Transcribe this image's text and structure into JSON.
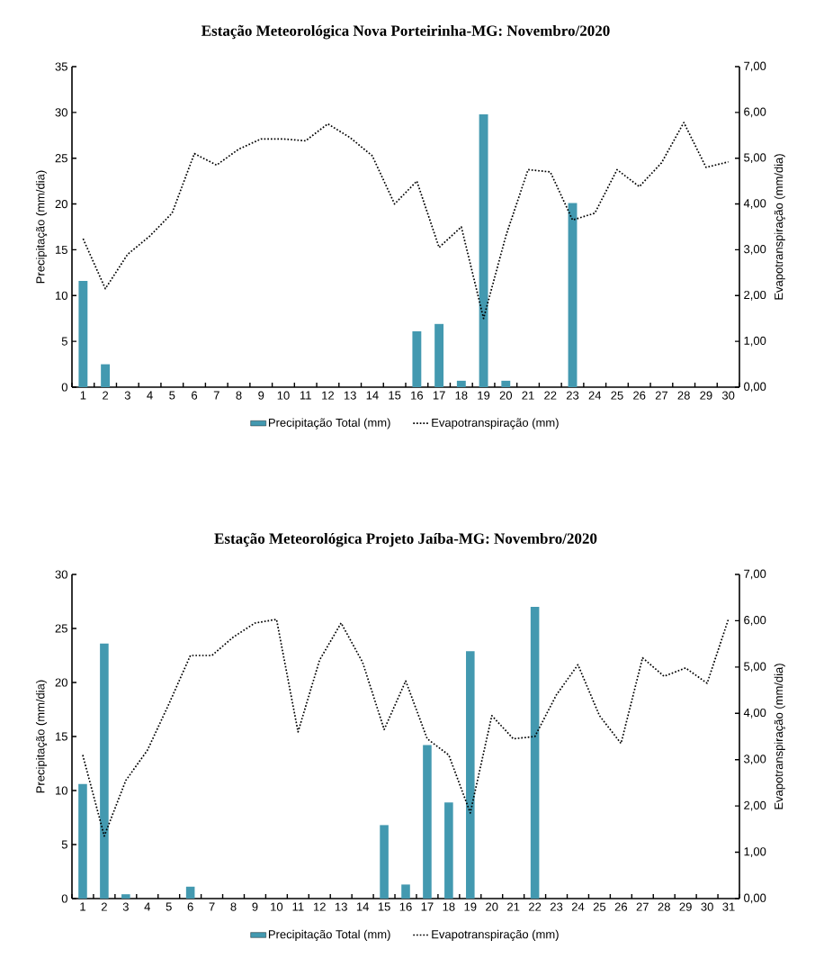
{
  "chart_data": [
    {
      "type": "bar",
      "title": "Estação Meteorológica Nova Porteirinha-MG: Novembro/2020",
      "ylabel": "Precipitação (mm/dia)",
      "y2label": "Evapotranspiração (mm/dia)",
      "categories": [
        "1",
        "2",
        "3",
        "4",
        "5",
        "6",
        "7",
        "8",
        "9",
        "10",
        "11",
        "12",
        "13",
        "14",
        "15",
        "16",
        "17",
        "18",
        "19",
        "20",
        "21",
        "22",
        "23",
        "24",
        "25",
        "26",
        "27",
        "28",
        "29",
        "30"
      ],
      "ylim": [
        0,
        35
      ],
      "yticks": [
        0,
        5,
        10,
        15,
        20,
        25,
        30,
        35
      ],
      "y2lim": [
        0,
        7
      ],
      "y2ticks": [
        {
          "value": 0,
          "label": "0,00"
        },
        {
          "value": 1,
          "label": "1,00"
        },
        {
          "value": 2,
          "label": "2,00"
        },
        {
          "value": 3,
          "label": "3,00"
        },
        {
          "value": 4,
          "label": "4,00"
        },
        {
          "value": 5,
          "label": "5,00"
        },
        {
          "value": 6,
          "label": "6,00"
        },
        {
          "value": 7,
          "label": "7,00"
        }
      ],
      "legend": "bottom",
      "marker": "none",
      "series": [
        {
          "name": "Precipitação Total (mm)",
          "color": "#4399b0",
          "values": [
            11.6,
            2.5,
            0,
            0,
            0,
            0,
            0,
            0,
            0,
            0,
            0,
            0,
            0,
            0,
            0,
            6.1,
            6.9,
            0.7,
            29.8,
            0.7,
            0,
            0,
            20.1,
            0,
            0,
            0,
            0,
            0,
            0,
            0
          ]
        },
        {
          "name": "Evapotranspiração (mm)",
          "type": "line",
          "axis": "y2",
          "color": "#000000",
          "line_style": "dotted",
          "values": [
            3.24,
            2.15,
            2.9,
            3.3,
            3.8,
            5.1,
            4.85,
            5.2,
            5.42,
            5.42,
            5.38,
            5.75,
            5.45,
            5.05,
            4.0,
            4.5,
            3.05,
            3.5,
            1.5,
            3.3,
            4.75,
            4.7,
            3.65,
            3.8,
            4.75,
            4.38,
            4.9,
            5.78,
            4.8,
            4.92
          ]
        }
      ]
    },
    {
      "type": "bar",
      "title": "Estação Meteorológica Projeto Jaíba-MG: Novembro/2020",
      "ylabel": "Precipitação (mm/dia)",
      "y2label": "Evapotranspiração (mm/dia)",
      "categories": [
        "1",
        "2",
        "3",
        "4",
        "5",
        "6",
        "7",
        "8",
        "9",
        "10",
        "11",
        "12",
        "13",
        "14",
        "15",
        "16",
        "17",
        "18",
        "19",
        "20",
        "21",
        "22",
        "23",
        "24",
        "25",
        "26",
        "27",
        "28",
        "29",
        "30",
        "31"
      ],
      "ylim": [
        0,
        30
      ],
      "yticks": [
        0,
        5,
        10,
        15,
        20,
        25,
        30
      ],
      "y2lim": [
        0,
        7
      ],
      "y2ticks": [
        {
          "value": 0,
          "label": "0,00"
        },
        {
          "value": 1,
          "label": "1,00"
        },
        {
          "value": 2,
          "label": "2,00"
        },
        {
          "value": 3,
          "label": "3,00"
        },
        {
          "value": 4,
          "label": "4,00"
        },
        {
          "value": 5,
          "label": "5,00"
        },
        {
          "value": 6,
          "label": "6,00"
        },
        {
          "value": 7,
          "label": "7,00"
        }
      ],
      "legend": "bottom",
      "marker": "none",
      "series": [
        {
          "name": "Precipitação Total (mm)",
          "color": "#4399b0",
          "values": [
            10.6,
            23.6,
            0.4,
            0,
            0,
            1.1,
            0,
            0,
            0,
            0,
            0,
            0,
            0,
            0,
            6.8,
            1.3,
            14.2,
            8.9,
            22.9,
            0,
            0,
            27.0,
            0,
            0,
            0,
            0,
            0,
            0,
            0,
            0,
            0
          ]
        },
        {
          "name": "Evapotranspiração (mm)",
          "type": "line",
          "axis": "y2",
          "color": "#000000",
          "line_style": "dotted",
          "values": [
            3.1,
            1.35,
            2.55,
            3.2,
            4.2,
            5.25,
            5.25,
            5.65,
            5.95,
            6.03,
            3.6,
            5.15,
            5.95,
            5.1,
            3.65,
            4.7,
            3.45,
            3.1,
            1.85,
            3.95,
            3.45,
            3.5,
            4.4,
            5.05,
            3.95,
            3.35,
            5.2,
            4.8,
            4.98,
            4.65,
            6.05
          ]
        }
      ]
    }
  ]
}
